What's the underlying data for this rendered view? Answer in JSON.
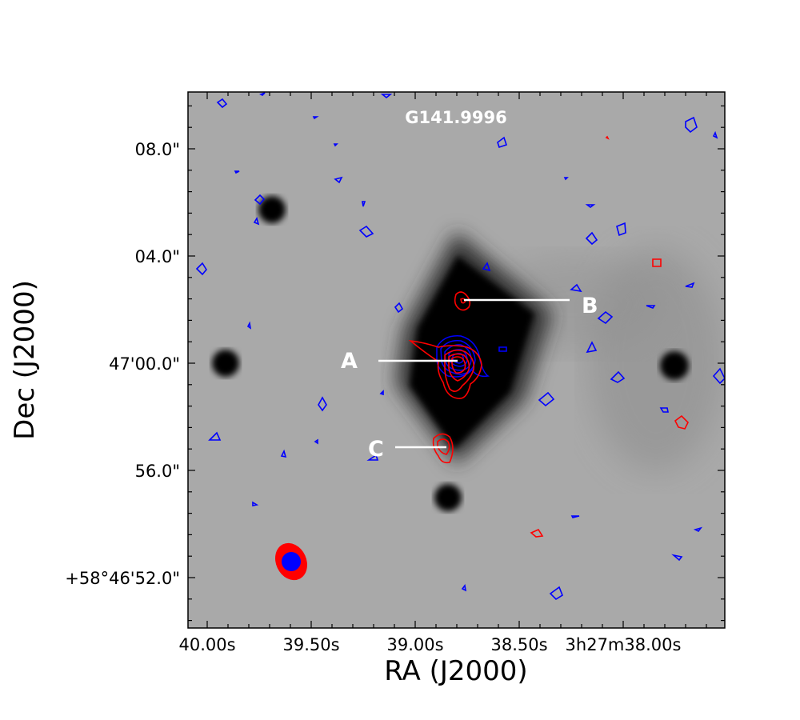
{
  "chart_data": {
    "type": "image",
    "title": "G141.9996",
    "xlabel": "RA (J2000)",
    "ylabel": "Dec (J2000)",
    "x_ticks": [
      "40.00s",
      "39.50s",
      "39.00s",
      "38.50s",
      "3h27m38.00s"
    ],
    "y_ticks": [
      "08.0\"",
      "04.0\"",
      "47'00.0\"",
      "56.0\"",
      "+58°46'52.0\""
    ],
    "background": "grayscale image",
    "contour_series": [
      {
        "color": "#0000ff"
      },
      {
        "color": "#ff0000"
      }
    ],
    "source_labels": [
      "A",
      "B",
      "C"
    ],
    "beam": {
      "outer_color": "#ff0000",
      "inner_color": "#0000ff"
    }
  }
}
